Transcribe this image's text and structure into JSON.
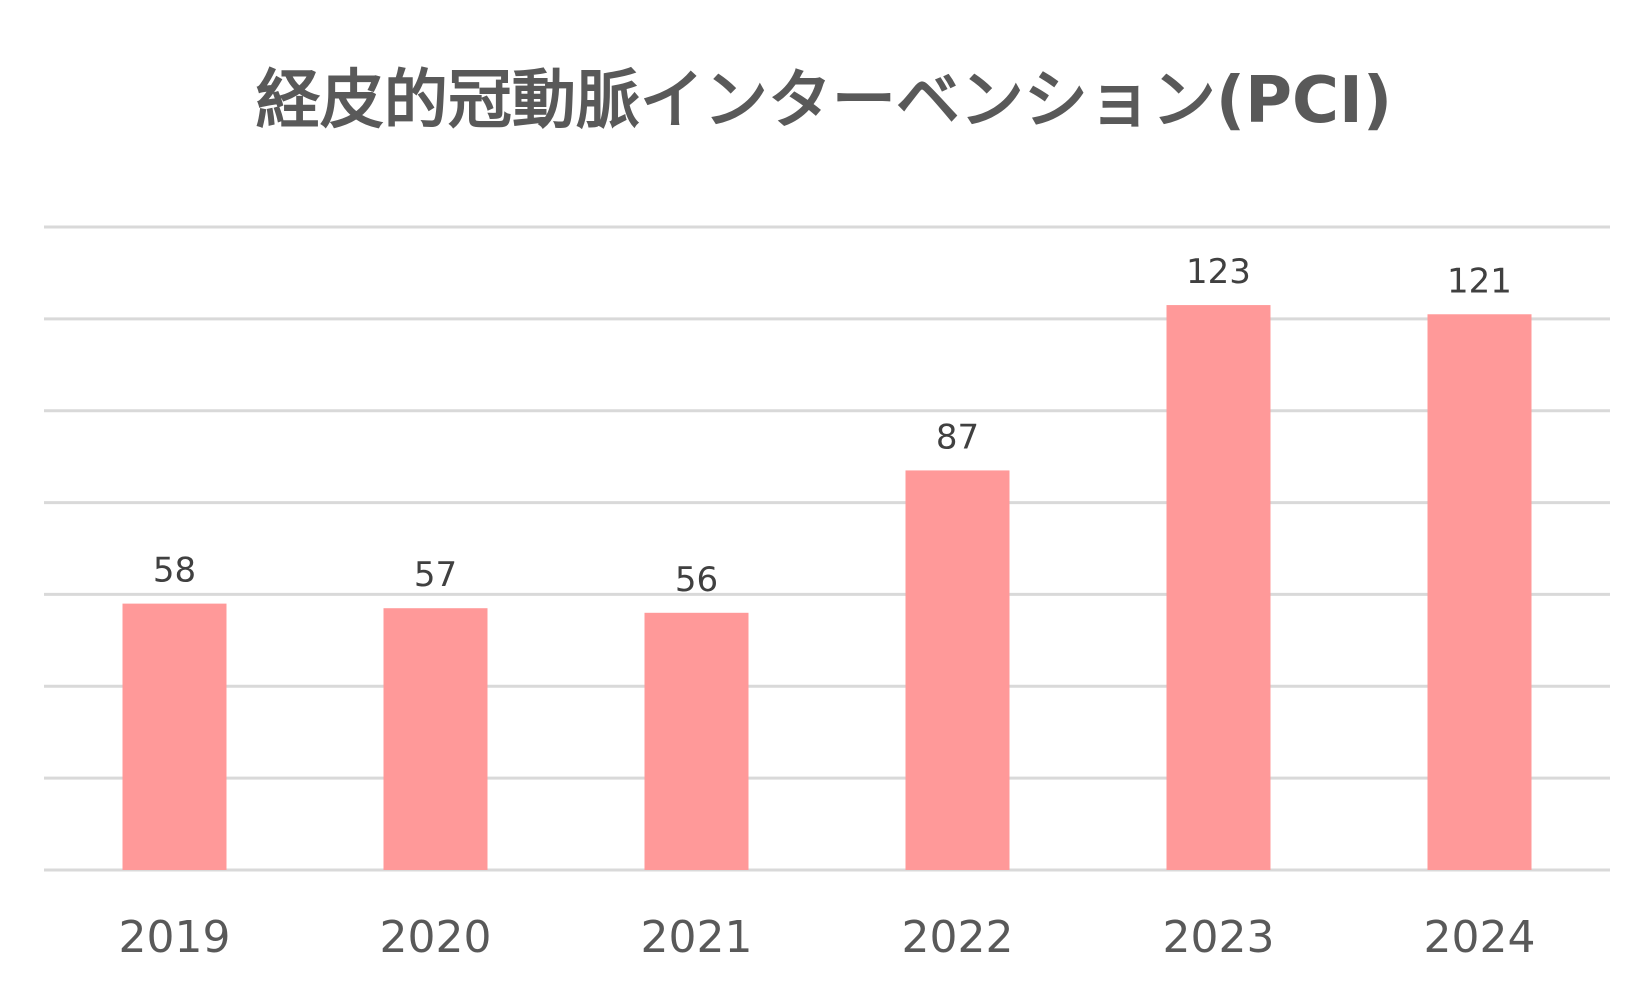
{
  "chart_data": {
    "type": "bar",
    "title": "経皮的冠動脈インターベンション(PCI)",
    "categories": [
      "2019",
      "2020",
      "2021",
      "2022",
      "2023",
      "2024"
    ],
    "values": [
      58,
      57,
      56,
      87,
      123,
      121
    ],
    "ylim": [
      0,
      140
    ],
    "grid": true,
    "data_labels": true,
    "colors": {
      "bar": "#ff9999",
      "grid": "#d9d9d9",
      "text": "#595959"
    }
  }
}
